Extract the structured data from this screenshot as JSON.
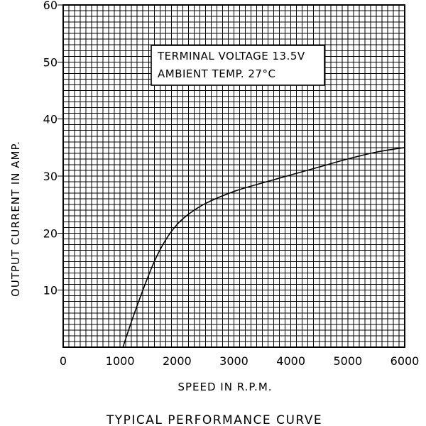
{
  "chart_data": {
    "type": "line",
    "title": "",
    "caption": "TYPICAL PERFORMANCE CURVE",
    "xlabel": "SPEED IN R.P.M.",
    "ylabel": "OUTPUT CURRENT IN AMP.",
    "xlim": [
      0,
      6000
    ],
    "ylim": [
      0,
      60
    ],
    "x_ticks": [
      "0",
      "1000",
      "2000",
      "3000",
      "4000",
      "5000",
      "6000"
    ],
    "y_ticks": [
      "10",
      "20",
      "30",
      "40",
      "50",
      "60"
    ],
    "grid": true,
    "annotations": [
      "TERMINAL VOLTAGE 13.5V",
      "AMBIENT TEMP. 27°C"
    ],
    "series": [
      {
        "x": [
          1050,
          1200,
          1400,
          1600,
          1800,
          2000,
          2200,
          2500,
          3000,
          3500,
          4000,
          4500,
          5000,
          5500,
          6000
        ],
        "y": [
          0,
          4.5,
          10,
          15,
          18.8,
          21.5,
          23.3,
          25.2,
          27.3,
          28.8,
          30.2,
          31.6,
          33,
          34.2,
          35
        ]
      }
    ]
  }
}
